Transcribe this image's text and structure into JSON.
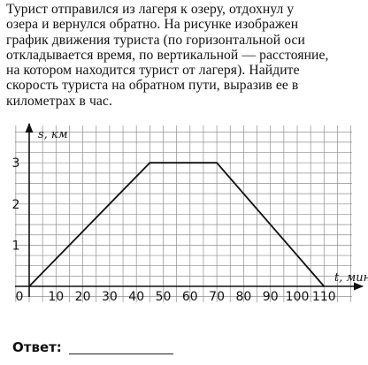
{
  "problem": {
    "lines": [
      "Турист отправился из лагеря к озеру, отдохнул у",
      "озера и вернулся обратно. На рисунке изображен",
      "график движения туриста (по горизонтальной оси",
      "откладывается время, по вертикальной — расстояние,",
      "на котором находится турист от лагеря). Найдите",
      "скорость туриста на обратном пути, выразив ее в",
      "километрах в час."
    ]
  },
  "chart_data": {
    "type": "line",
    "xlabel": "t, мин",
    "ylabel": "s, км",
    "xlim": [
      0,
      115
    ],
    "ylim": [
      0,
      3.6
    ],
    "x_ticks": [
      0,
      10,
      20,
      30,
      40,
      50,
      60,
      70,
      80,
      90,
      100,
      110
    ],
    "y_ticks": [
      1,
      2,
      3
    ],
    "tick_labels_x": [
      "0",
      "10",
      "20",
      "30",
      "40",
      "50",
      "60",
      "70",
      "80",
      "90",
      "100",
      "110"
    ],
    "tick_labels_y": [
      "1",
      "2",
      "3"
    ],
    "grid": true,
    "grid_step_x": 5,
    "grid_step_y": 0.25,
    "series": [
      {
        "x": [
          0,
          45,
          70,
          110
        ],
        "y": [
          0,
          3,
          3,
          0
        ]
      }
    ]
  },
  "answer": {
    "label": "Ответ:"
  }
}
